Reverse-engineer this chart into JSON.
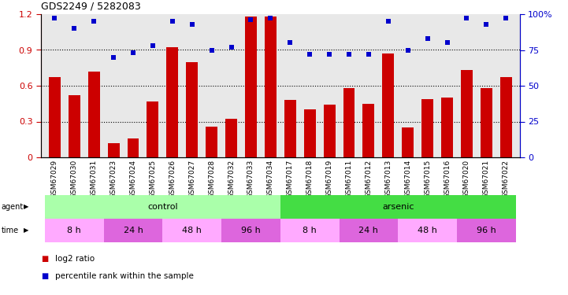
{
  "title": "GDS2249 / 5282083",
  "samples": [
    "GSM67029",
    "GSM67030",
    "GSM67031",
    "GSM67023",
    "GSM67024",
    "GSM67025",
    "GSM67026",
    "GSM67027",
    "GSM67028",
    "GSM67032",
    "GSM67033",
    "GSM67034",
    "GSM67017",
    "GSM67018",
    "GSM67019",
    "GSM67011",
    "GSM67012",
    "GSM67013",
    "GSM67014",
    "GSM67015",
    "GSM67016",
    "GSM67020",
    "GSM67021",
    "GSM67022"
  ],
  "log2_ratio": [
    0.67,
    0.52,
    0.72,
    0.12,
    0.16,
    0.47,
    0.92,
    0.8,
    0.26,
    0.32,
    1.18,
    1.18,
    0.48,
    0.4,
    0.44,
    0.58,
    0.45,
    0.87,
    0.25,
    0.49,
    0.5,
    0.73,
    0.58,
    0.67
  ],
  "percentile": [
    97,
    90,
    95,
    70,
    73,
    78,
    95,
    93,
    75,
    77,
    96,
    97,
    80,
    72,
    72,
    72,
    72,
    95,
    75,
    83,
    80,
    97,
    93,
    97
  ],
  "bar_color": "#cc0000",
  "dot_color": "#0000cc",
  "ylim_left": [
    0,
    1.2
  ],
  "ylim_right": [
    0,
    100
  ],
  "yticks_left": [
    0,
    0.3,
    0.6,
    0.9,
    1.2
  ],
  "ytick_labels_left": [
    "0",
    "0.3",
    "0.6",
    "0.9",
    "1.2"
  ],
  "yticks_right": [
    0,
    25,
    50,
    75,
    100
  ],
  "ytick_labels_right": [
    "0",
    "25",
    "50",
    "75",
    "100%"
  ],
  "agent_groups": [
    {
      "label": "control",
      "start": 0,
      "end": 11,
      "color": "#aaffaa"
    },
    {
      "label": "arsenic",
      "start": 12,
      "end": 23,
      "color": "#44dd44"
    }
  ],
  "time_groups": [
    {
      "label": "8 h",
      "start": 0,
      "end": 2,
      "color": "#ffaaff"
    },
    {
      "label": "24 h",
      "start": 3,
      "end": 5,
      "color": "#dd66dd"
    },
    {
      "label": "48 h",
      "start": 6,
      "end": 8,
      "color": "#ffaaff"
    },
    {
      "label": "96 h",
      "start": 9,
      "end": 11,
      "color": "#dd66dd"
    },
    {
      "label": "8 h",
      "start": 12,
      "end": 14,
      "color": "#ffaaff"
    },
    {
      "label": "24 h",
      "start": 15,
      "end": 17,
      "color": "#dd66dd"
    },
    {
      "label": "48 h",
      "start": 18,
      "end": 20,
      "color": "#ffaaff"
    },
    {
      "label": "96 h",
      "start": 21,
      "end": 23,
      "color": "#dd66dd"
    }
  ],
  "legend_items": [
    {
      "label": "log2 ratio",
      "color": "#cc0000"
    },
    {
      "label": "percentile rank within the sample",
      "color": "#0000cc"
    }
  ],
  "plot_bg": "#e8e8e8",
  "tick_bg": "#d0d0d0",
  "grid_color": "#000000",
  "agent_label": "agent",
  "time_label": "time",
  "bar_width": 0.6
}
